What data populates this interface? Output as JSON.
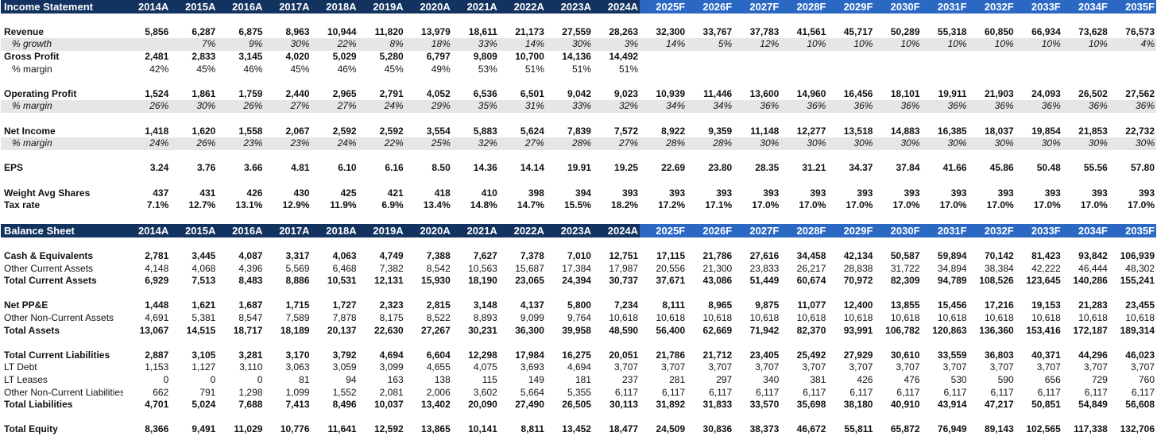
{
  "years": [
    "2014A",
    "2015A",
    "2016A",
    "2017A",
    "2018A",
    "2019A",
    "2020A",
    "2021A",
    "2022A",
    "2023A",
    "2024A",
    "2025F",
    "2026F",
    "2027F",
    "2028F",
    "2029F",
    "2030F",
    "2031F",
    "2032F",
    "2033F",
    "2034F",
    "2035F"
  ],
  "income_statement": {
    "title": "Income Statement",
    "rows": [
      {
        "label": "Revenue",
        "values": [
          "5,856",
          "6,287",
          "6,875",
          "8,963",
          "10,944",
          "11,820",
          "13,979",
          "18,611",
          "21,173",
          "27,559",
          "28,263",
          "32,300",
          "33,767",
          "37,783",
          "41,561",
          "45,717",
          "50,289",
          "55,318",
          "60,850",
          "66,934",
          "73,628",
          "76,573"
        ]
      },
      {
        "label": "% growth",
        "values": [
          "",
          "7%",
          "9%",
          "30%",
          "22%",
          "8%",
          "18%",
          "33%",
          "14%",
          "30%",
          "3%",
          "14%",
          "5%",
          "12%",
          "10%",
          "10%",
          "10%",
          "10%",
          "10%",
          "10%",
          "10%",
          "4%"
        ]
      },
      {
        "label": "Gross Profit",
        "values": [
          "2,481",
          "2,833",
          "3,145",
          "4,020",
          "5,029",
          "5,280",
          "6,797",
          "9,809",
          "10,700",
          "14,136",
          "14,492",
          "",
          "",
          "",
          "",
          "",
          "",
          "",
          "",
          "",
          "",
          ""
        ]
      },
      {
        "label": "% margin",
        "values": [
          "42%",
          "45%",
          "46%",
          "45%",
          "46%",
          "45%",
          "49%",
          "53%",
          "51%",
          "51%",
          "51%",
          "",
          "",
          "",
          "",
          "",
          "",
          "",
          "",
          "",
          "",
          ""
        ]
      },
      {
        "label": "Operating Profit",
        "values": [
          "1,524",
          "1,861",
          "1,759",
          "2,440",
          "2,965",
          "2,791",
          "4,052",
          "6,536",
          "6,501",
          "9,042",
          "9,023",
          "10,939",
          "11,446",
          "13,600",
          "14,960",
          "16,456",
          "18,101",
          "19,911",
          "21,903",
          "24,093",
          "26,502",
          "27,562"
        ]
      },
      {
        "label": "% margin",
        "values": [
          "26%",
          "30%",
          "26%",
          "27%",
          "27%",
          "24%",
          "29%",
          "35%",
          "31%",
          "33%",
          "32%",
          "34%",
          "34%",
          "36%",
          "36%",
          "36%",
          "36%",
          "36%",
          "36%",
          "36%",
          "36%",
          "36%"
        ]
      },
      {
        "label": "Net Income",
        "values": [
          "1,418",
          "1,620",
          "1,558",
          "2,067",
          "2,592",
          "2,592",
          "3,554",
          "5,883",
          "5,624",
          "7,839",
          "7,572",
          "8,922",
          "9,359",
          "11,148",
          "12,277",
          "13,518",
          "14,883",
          "16,385",
          "18,037",
          "19,854",
          "21,853",
          "22,732"
        ]
      },
      {
        "label": "% margin",
        "values": [
          "24%",
          "26%",
          "23%",
          "23%",
          "24%",
          "22%",
          "25%",
          "32%",
          "27%",
          "28%",
          "27%",
          "28%",
          "28%",
          "30%",
          "30%",
          "30%",
          "30%",
          "30%",
          "30%",
          "30%",
          "30%",
          "30%"
        ]
      },
      {
        "label": "EPS",
        "values": [
          "3.24",
          "3.76",
          "3.66",
          "4.81",
          "6.10",
          "6.16",
          "8.50",
          "14.36",
          "14.14",
          "19.91",
          "19.25",
          "22.69",
          "23.80",
          "28.35",
          "31.21",
          "34.37",
          "37.84",
          "41.66",
          "45.86",
          "50.48",
          "55.56",
          "57.80"
        ]
      },
      {
        "label": "Weight Avg Shares",
        "values": [
          "437",
          "431",
          "426",
          "430",
          "425",
          "421",
          "418",
          "410",
          "398",
          "394",
          "393",
          "393",
          "393",
          "393",
          "393",
          "393",
          "393",
          "393",
          "393",
          "393",
          "393",
          "393"
        ]
      },
      {
        "label": "Tax rate",
        "values": [
          "7.1%",
          "12.7%",
          "13.1%",
          "12.9%",
          "11.9%",
          "6.9%",
          "13.4%",
          "14.8%",
          "14.7%",
          "15.5%",
          "18.2%",
          "17.2%",
          "17.1%",
          "17.0%",
          "17.0%",
          "17.0%",
          "17.0%",
          "17.0%",
          "17.0%",
          "17.0%",
          "17.0%",
          "17.0%"
        ]
      }
    ]
  },
  "balance_sheet": {
    "title": "Balance Sheet",
    "rows": [
      {
        "label": "Cash & Equivalents",
        "values": [
          "2,781",
          "3,445",
          "4,087",
          "3,317",
          "4,063",
          "4,749",
          "7,388",
          "7,627",
          "7,378",
          "7,010",
          "12,751",
          "17,115",
          "21,786",
          "27,616",
          "34,458",
          "42,134",
          "50,587",
          "59,894",
          "70,142",
          "81,423",
          "93,842",
          "106,939"
        ]
      },
      {
        "label": "Other Current Assets",
        "values": [
          "4,148",
          "4,068",
          "4,396",
          "5,569",
          "6,468",
          "7,382",
          "8,542",
          "10,563",
          "15,687",
          "17,384",
          "17,987",
          "20,556",
          "21,300",
          "23,833",
          "26,217",
          "28,838",
          "31,722",
          "34,894",
          "38,384",
          "42,222",
          "46,444",
          "48,302"
        ]
      },
      {
        "label": "Total Current Assets",
        "values": [
          "6,929",
          "7,513",
          "8,483",
          "8,886",
          "10,531",
          "12,131",
          "15,930",
          "18,190",
          "23,065",
          "24,394",
          "30,737",
          "37,671",
          "43,086",
          "51,449",
          "60,674",
          "70,972",
          "82,309",
          "94,789",
          "108,526",
          "123,645",
          "140,286",
          "155,241"
        ]
      },
      {
        "label": "Net PP&E",
        "values": [
          "1,448",
          "1,621",
          "1,687",
          "1,715",
          "1,727",
          "2,323",
          "2,815",
          "3,148",
          "4,137",
          "5,800",
          "7,234",
          "8,111",
          "8,965",
          "9,875",
          "11,077",
          "12,400",
          "13,855",
          "15,456",
          "17,216",
          "19,153",
          "21,283",
          "23,455"
        ]
      },
      {
        "label": "Other Non-Current Assets",
        "values": [
          "4,691",
          "5,381",
          "8,547",
          "7,589",
          "7,878",
          "8,175",
          "8,522",
          "8,893",
          "9,099",
          "9,764",
          "10,618",
          "10,618",
          "10,618",
          "10,618",
          "10,618",
          "10,618",
          "10,618",
          "10,618",
          "10,618",
          "10,618",
          "10,618",
          "10,618"
        ]
      },
      {
        "label": "Total Assets",
        "values": [
          "13,067",
          "14,515",
          "18,717",
          "18,189",
          "20,137",
          "22,630",
          "27,267",
          "30,231",
          "36,300",
          "39,958",
          "48,590",
          "56,400",
          "62,669",
          "71,942",
          "82,370",
          "93,991",
          "106,782",
          "120,863",
          "136,360",
          "153,416",
          "172,187",
          "189,314"
        ]
      },
      {
        "label": "Total Current Liabilities",
        "values": [
          "2,887",
          "3,105",
          "3,281",
          "3,170",
          "3,792",
          "4,694",
          "6,604",
          "12,298",
          "17,984",
          "16,275",
          "20,051",
          "21,786",
          "21,712",
          "23,405",
          "25,492",
          "27,929",
          "30,610",
          "33,559",
          "36,803",
          "40,371",
          "44,296",
          "46,023"
        ]
      },
      {
        "label": "LT Debt",
        "values": [
          "1,153",
          "1,127",
          "3,110",
          "3,063",
          "3,059",
          "3,099",
          "4,655",
          "4,075",
          "3,693",
          "4,694",
          "3,707",
          "3,707",
          "3,707",
          "3,707",
          "3,707",
          "3,707",
          "3,707",
          "3,707",
          "3,707",
          "3,707",
          "3,707",
          "3,707"
        ]
      },
      {
        "label": "LT Leases",
        "values": [
          "0",
          "0",
          "0",
          "81",
          "94",
          "163",
          "138",
          "115",
          "149",
          "181",
          "237",
          "281",
          "297",
          "340",
          "381",
          "426",
          "476",
          "530",
          "590",
          "656",
          "729",
          "760"
        ]
      },
      {
        "label": "Other Non-Current Liabilities",
        "values": [
          "662",
          "791",
          "1,298",
          "1,099",
          "1,552",
          "2,081",
          "2,006",
          "3,602",
          "5,664",
          "5,355",
          "6,117",
          "6,117",
          "6,117",
          "6,117",
          "6,117",
          "6,117",
          "6,117",
          "6,117",
          "6,117",
          "6,117",
          "6,117",
          "6,117"
        ]
      },
      {
        "label": "Total Liabilities",
        "values": [
          "4,701",
          "5,024",
          "7,688",
          "7,413",
          "8,496",
          "10,037",
          "13,402",
          "20,090",
          "27,490",
          "26,505",
          "30,113",
          "31,892",
          "31,833",
          "33,570",
          "35,698",
          "38,180",
          "40,910",
          "43,914",
          "47,217",
          "50,851",
          "54,849",
          "56,608"
        ]
      },
      {
        "label": "Total Equity",
        "values": [
          "8,366",
          "9,491",
          "11,029",
          "10,776",
          "11,641",
          "12,592",
          "13,865",
          "10,141",
          "8,811",
          "13,452",
          "18,477",
          "24,509",
          "30,836",
          "38,373",
          "46,672",
          "55,811",
          "65,872",
          "76,949",
          "89,143",
          "102,565",
          "117,338",
          "132,706"
        ]
      }
    ]
  }
}
